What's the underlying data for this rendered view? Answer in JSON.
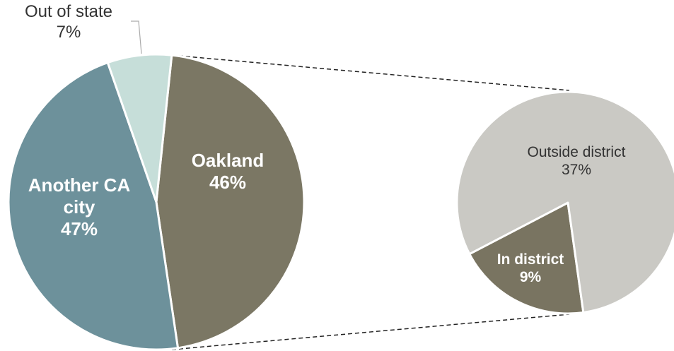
{
  "chart_data": [
    {
      "type": "pie",
      "categories": [
        "Oakland",
        "Another CA city",
        "Out of state"
      ],
      "values": [
        46,
        47,
        7
      ],
      "value_labels": [
        "46%",
        "47%",
        "7%"
      ],
      "colors": [
        "#7b7764",
        "#6d919b",
        "#c6ded9"
      ]
    },
    {
      "type": "pie",
      "categories": [
        "In district",
        "Outside district"
      ],
      "values": [
        9,
        37
      ],
      "value_labels": [
        "9%",
        "37%"
      ],
      "colors": [
        "#797461",
        "#cac9c4"
      ]
    }
  ]
}
